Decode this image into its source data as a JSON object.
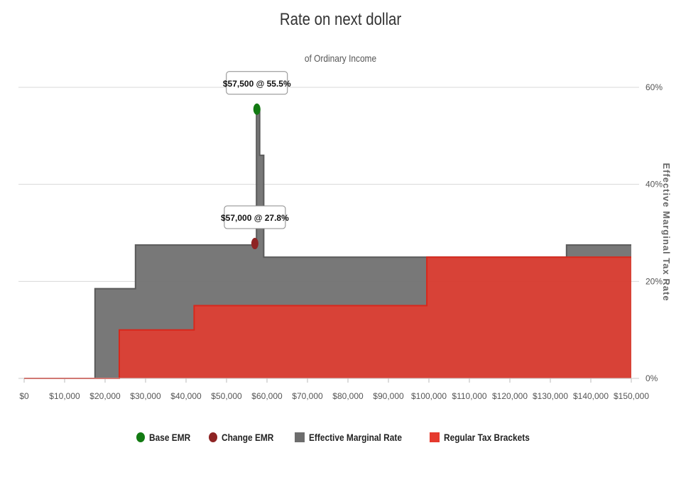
{
  "chart_data": {
    "type": "area",
    "title": "Rate on next dollar",
    "subtitle": "of Ordinary Income",
    "ylabel": "Effective Marginal Tax Rate",
    "xlim": [
      0,
      150000
    ],
    "ylim": [
      0,
      60
    ],
    "x_ticks": [
      "$0",
      "$10,000",
      "$20,000",
      "$30,000",
      "$40,000",
      "$50,000",
      "$60,000",
      "$70,000",
      "$80,000",
      "$90,000",
      "$100,000",
      "$110,000",
      "$120,000",
      "$130,000",
      "$140,000",
      "$150,000"
    ],
    "y_ticks": [
      "0%",
      "20%",
      "40%",
      "60%"
    ],
    "grid": true,
    "legend_position": "bottom",
    "series": [
      {
        "name": "Effective Marginal Rate",
        "color": "#6d6d6d",
        "points": [
          [
            0,
            0
          ],
          [
            17500,
            0
          ],
          [
            17500,
            18.5
          ],
          [
            27500,
            18.5
          ],
          [
            27500,
            27.5
          ],
          [
            57000,
            27.5
          ],
          [
            57000,
            27.8
          ],
          [
            57400,
            27.8
          ],
          [
            57400,
            55.5
          ],
          [
            58200,
            55.5
          ],
          [
            58200,
            46
          ],
          [
            59200,
            46
          ],
          [
            59200,
            25
          ],
          [
            100000,
            25
          ],
          [
            100000,
            25
          ],
          [
            134000,
            25
          ],
          [
            134000,
            27.5
          ],
          [
            150000,
            27.5
          ]
        ]
      },
      {
        "name": "Regular Tax Brackets",
        "color": "#e53a2e",
        "points": [
          [
            0,
            0
          ],
          [
            23500,
            0
          ],
          [
            23500,
            10
          ],
          [
            42000,
            10
          ],
          [
            42000,
            15
          ],
          [
            99500,
            15
          ],
          [
            99500,
            25
          ],
          [
            150000,
            25
          ]
        ]
      }
    ],
    "markers": [
      {
        "name": "Base EMR",
        "color": "#127a12",
        "x": 57500,
        "y": 55.5,
        "label": "$57,500 @ 55.5%"
      },
      {
        "name": "Change EMR",
        "color": "#8e2424",
        "x": 57000,
        "y": 27.8,
        "label": "$57,000 @ 27.8%"
      }
    ]
  },
  "legend": [
    {
      "label": "Base EMR",
      "shape": "circle",
      "color": "#127a12"
    },
    {
      "label": "Change EMR",
      "shape": "circle",
      "color": "#8e2424"
    },
    {
      "label": "Effective Marginal Rate",
      "shape": "rect",
      "color": "#6d6d6d"
    },
    {
      "label": "Regular Tax Brackets",
      "shape": "rect",
      "color": "#e53a2e"
    }
  ]
}
